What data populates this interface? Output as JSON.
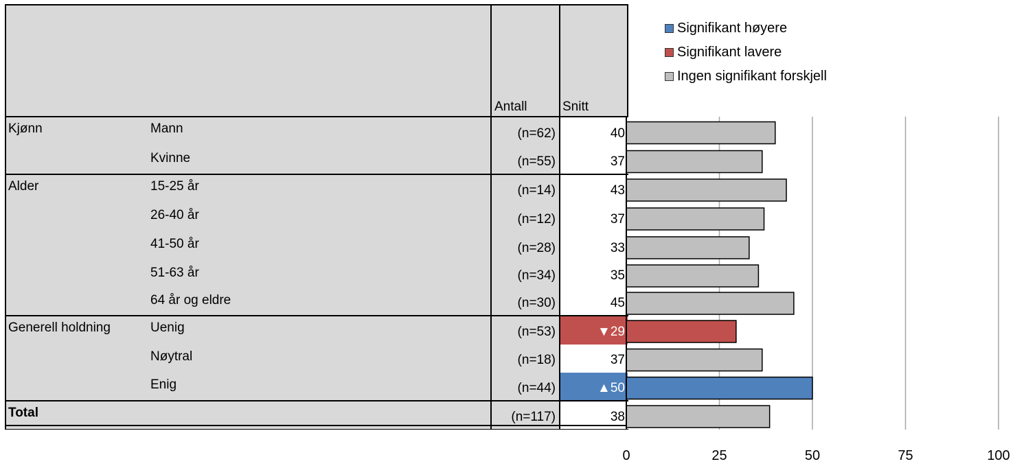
{
  "header": {
    "count_label": "Antall",
    "mean_label": "Snitt"
  },
  "legend": [
    {
      "label": "Signifikant høyere",
      "color": "#4f81bd"
    },
    {
      "label": "Signifikant lavere",
      "color": "#c0504d"
    },
    {
      "label": "Ingen signifikant forskjell",
      "color": "#bfbfbf"
    }
  ],
  "rows": [
    {
      "group": "Kjønn",
      "category": "Mann",
      "n": "(n=62)",
      "mean_label": "40",
      "marker": "",
      "status": "none"
    },
    {
      "group": "",
      "category": "Kvinne",
      "n": "(n=55)",
      "mean_label": "37",
      "marker": "",
      "status": "none"
    },
    {
      "group": "Alder",
      "category": "15-25 år",
      "n": "(n=14)",
      "mean_label": "43",
      "marker": "",
      "status": "none"
    },
    {
      "group": "",
      "category": "26-40 år",
      "n": "(n=12)",
      "mean_label": "37",
      "marker": "",
      "status": "none"
    },
    {
      "group": "",
      "category": "41-50 år",
      "n": "(n=28)",
      "mean_label": "33",
      "marker": "",
      "status": "none"
    },
    {
      "group": "",
      "category": "51-63 år",
      "n": "(n=34)",
      "mean_label": "35",
      "marker": "",
      "status": "none"
    },
    {
      "group": "",
      "category": "64 år og eldre",
      "n": "(n=30)",
      "mean_label": "45",
      "marker": "",
      "status": "none"
    },
    {
      "group": "Generell holdning",
      "category": "Uenig",
      "n": "(n=53)",
      "mean_label": "29",
      "marker": "▼",
      "status": "lower"
    },
    {
      "group": "",
      "category": "Nøytral",
      "n": "(n=18)",
      "mean_label": "37",
      "marker": "",
      "status": "none"
    },
    {
      "group": "",
      "category": "Enig",
      "n": "(n=44)",
      "mean_label": "50",
      "marker": "▲",
      "status": "higher"
    },
    {
      "group": "Total",
      "category": "",
      "n": "(n=117)",
      "mean_label": "38",
      "marker": "",
      "status": "none"
    }
  ],
  "chart_data": {
    "type": "bar",
    "orientation": "horizontal",
    "categories": [
      "Mann",
      "Kvinne",
      "15-25 år",
      "26-40 år",
      "41-50 år",
      "51-63 år",
      "64 år og eldre",
      "Uenig",
      "Nøytral",
      "Enig",
      "Total"
    ],
    "values": [
      40,
      36.5,
      43,
      37,
      33,
      35.5,
      45,
      29.5,
      36.5,
      50,
      38.5
    ],
    "xlim": [
      0,
      100
    ],
    "xticks": [
      "0",
      "25",
      "50",
      "75",
      "100"
    ],
    "grid": true,
    "legend_position": "top-right",
    "colors": {
      "higher": "#4f81bd",
      "lower": "#c0504d",
      "none": "#bfbfbf"
    }
  }
}
